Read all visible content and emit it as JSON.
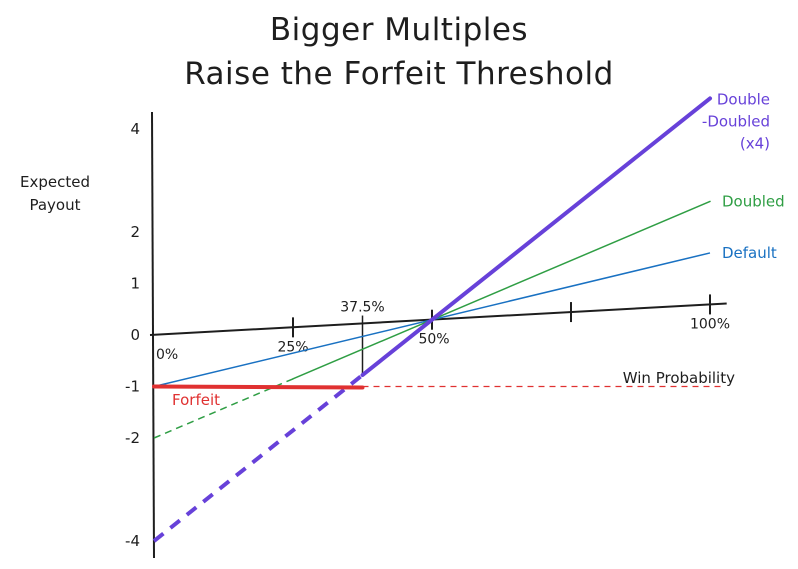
{
  "title_line1": "Bigger Multiples",
  "title_line2": "Raise the Forfeit Threshold",
  "chart_data": {
    "type": "line",
    "ylabel": "Expected Payout",
    "xlabel": "Win Probability",
    "xlim": [
      0,
      100
    ],
    "ylim": [
      -4,
      4
    ],
    "x_ticks": [
      {
        "value": 0,
        "label": "0%"
      },
      {
        "value": 25,
        "label": "25%"
      },
      {
        "value": 37.5,
        "label": "37.5%"
      },
      {
        "value": 50,
        "label": "50%"
      },
      {
        "value": 75,
        "label": ""
      },
      {
        "value": 100,
        "label": "100%"
      }
    ],
    "y_ticks": [
      {
        "value": 4,
        "label": "4"
      },
      {
        "value": 2,
        "label": "2"
      },
      {
        "value": 1,
        "label": "1"
      },
      {
        "value": 0,
        "label": "0"
      },
      {
        "value": -1,
        "label": "-1"
      },
      {
        "value": -2,
        "label": "-2"
      },
      {
        "value": -4,
        "label": "-4"
      }
    ],
    "series": [
      {
        "name": "Default",
        "color": "#1971c2",
        "points": [
          [
            0,
            -1
          ],
          [
            100,
            1
          ]
        ],
        "label_lines": [
          "Default"
        ]
      },
      {
        "name": "Doubled",
        "color": "#2f9e44",
        "points": [
          [
            0,
            -2
          ],
          [
            100,
            2
          ]
        ],
        "solid_from": 25,
        "label_lines": [
          "Doubled"
        ]
      },
      {
        "name": "Double-Doubled (x4)",
        "color": "#6741d9",
        "points": [
          [
            0,
            -4
          ],
          [
            100,
            4
          ]
        ],
        "solid_from": 37.5,
        "label_lines": [
          "Double",
          "-Doubled",
          "(x4)"
        ]
      }
    ],
    "forfeit": {
      "label": "Forfeit",
      "value": -1,
      "x_from": 0,
      "x_to": 37.5,
      "color": "#e03131",
      "dashed_to": 100
    }
  }
}
